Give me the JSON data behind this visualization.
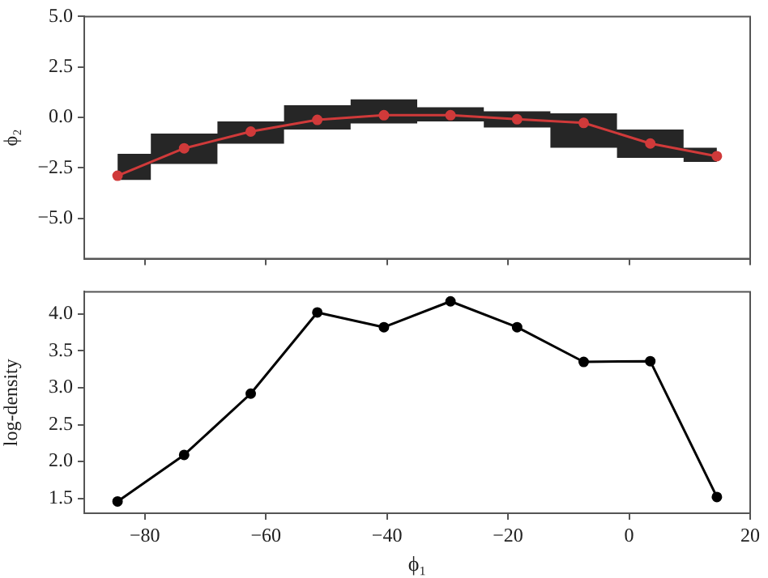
{
  "chart_data": [
    {
      "type": "line",
      "ylabel": "ϕ₂",
      "x": [
        -84.5,
        -73.5,
        -62.5,
        -51.5,
        -40.5,
        -29.5,
        -18.5,
        -7.5,
        3.5,
        14.5
      ],
      "series": [
        {
          "color": "#d03a3a",
          "values": [
            -2.89,
            -1.53,
            -0.7,
            -0.12,
            0.11,
            0.11,
            -0.09,
            -0.27,
            -1.29,
            -1.92
          ],
          "lower": [
            -3.1,
            -2.3,
            -1.3,
            -0.6,
            -0.3,
            -0.2,
            -0.5,
            -1.5,
            -2.0,
            -2.2
          ],
          "upper": [
            -1.8,
            -0.8,
            -0.2,
            0.6,
            0.9,
            0.5,
            0.3,
            0.2,
            -0.6,
            -1.5
          ]
        }
      ],
      "xlim": [
        -90,
        20
      ],
      "xticks": [
        {
          "value": -80,
          "label": null
        },
        {
          "value": -60,
          "label": null
        },
        {
          "value": -40,
          "label": null
        },
        {
          "value": -20,
          "label": null
        },
        {
          "value": 0,
          "label": null
        },
        {
          "value": 20,
          "label": null
        }
      ],
      "ylim": [
        -7,
        5
      ],
      "yticks": [
        {
          "value": -5,
          "label": "−5.0"
        },
        {
          "value": -2.5,
          "label": "−2.5"
        },
        {
          "value": 0,
          "label": "0.0"
        },
        {
          "value": 2.5,
          "label": "2.5"
        },
        {
          "value": 5,
          "label": "5.0"
        }
      ],
      "tick_labels": "y",
      "marker": "circle",
      "grid": false,
      "legend": false
    },
    {
      "type": "line",
      "xlabel": "ϕ₁",
      "ylabel": "log-density",
      "x": [
        -84.5,
        -73.5,
        -62.5,
        -51.5,
        -40.5,
        -29.5,
        -18.5,
        -7.5,
        3.5,
        14.5
      ],
      "series": [
        {
          "color": "#000000",
          "values": [
            1.46,
            2.09,
            2.92,
            4.02,
            3.82,
            4.17,
            3.82,
            3.35,
            3.36,
            1.52
          ]
        }
      ],
      "xlim": [
        -90,
        20
      ],
      "xticks": [
        {
          "value": -80,
          "label": "−80"
        },
        {
          "value": -60,
          "label": "−60"
        },
        {
          "value": -40,
          "label": "−40"
        },
        {
          "value": -20,
          "label": "−20"
        },
        {
          "value": 0,
          "label": "0"
        },
        {
          "value": 20,
          "label": "20"
        }
      ],
      "ylim": [
        1.3,
        4.3
      ],
      "yticks": [
        {
          "value": 1.5,
          "label": "1.5"
        },
        {
          "value": 2,
          "label": "2.0"
        },
        {
          "value": 2.5,
          "label": "2.5"
        },
        {
          "value": 3,
          "label": "3.0"
        },
        {
          "value": 3.5,
          "label": "3.5"
        },
        {
          "value": 4,
          "label": "4.0"
        }
      ],
      "marker": "circle",
      "grid": false,
      "legend": false
    }
  ]
}
